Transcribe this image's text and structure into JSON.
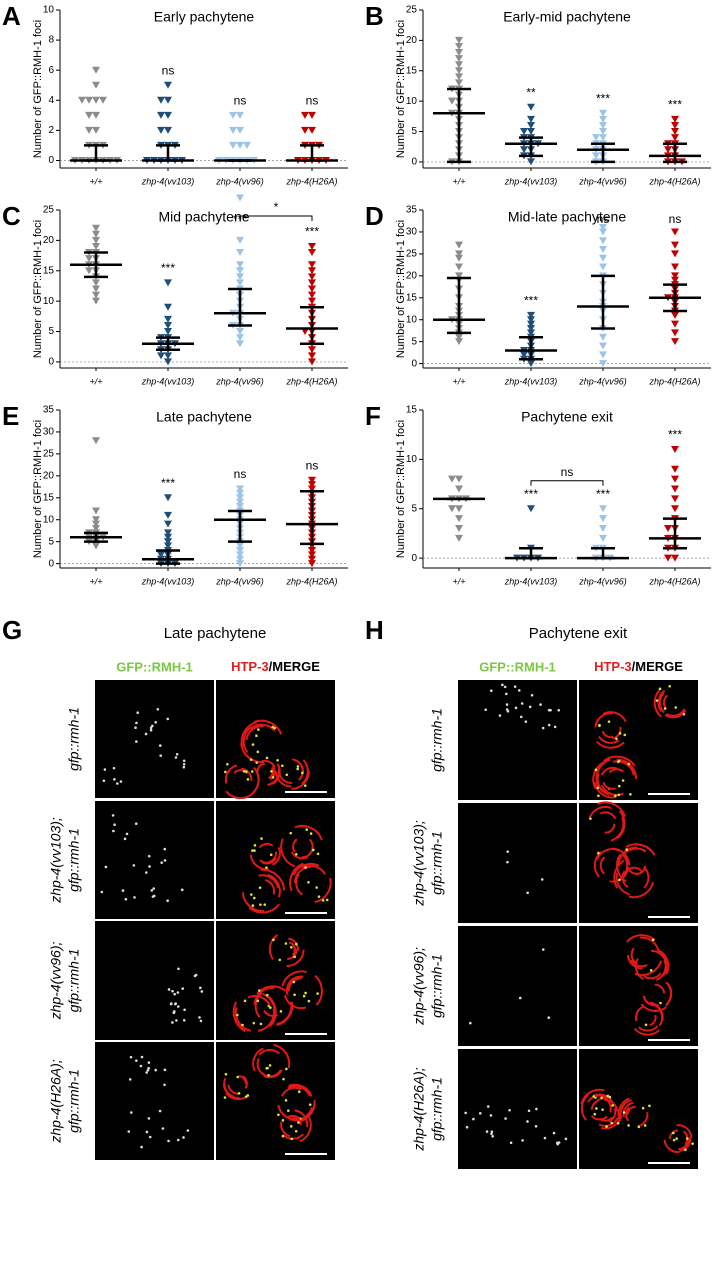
{
  "chart_data": [
    {
      "type": "dotplot",
      "panel": "A",
      "title": "Early pachytene",
      "ylabel": "Number of GFP::RMH-1 foci",
      "ylim": [
        -0.5,
        10
      ],
      "yticks": [
        0,
        2,
        4,
        6,
        8,
        10
      ],
      "groups": [
        {
          "name": "+/+",
          "color": "#8c8c8c",
          "points": [
            0,
            0,
            0,
            0,
            0,
            0,
            0,
            1,
            1,
            1,
            2,
            2,
            3,
            3,
            4,
            4,
            4,
            4,
            5,
            6
          ],
          "median": 0,
          "lower": 0,
          "upper": 1
        },
        {
          "name": "zhp-4(vv103)",
          "color": "#1f4e79",
          "points": [
            0,
            0,
            0,
            0,
            0,
            0,
            1,
            1,
            1,
            2,
            2,
            3,
            3,
            4,
            4,
            5
          ],
          "median": 0,
          "lower": 0,
          "upper": 1,
          "sig": "ns"
        },
        {
          "name": "zhp-4(vv96)",
          "color": "#9dc3e6",
          "points": [
            0,
            0,
            0,
            0,
            0,
            0,
            1,
            1,
            1,
            2,
            2,
            3,
            3
          ],
          "median": 0,
          "lower": 0,
          "upper": 0,
          "sig": "ns"
        },
        {
          "name": "zhp-4(H26A)",
          "color": "#c00000",
          "points": [
            0,
            0,
            0,
            0,
            0,
            1,
            1,
            1,
            2,
            2,
            3,
            3
          ],
          "median": 0,
          "lower": 0,
          "upper": 1,
          "sig": "ns"
        }
      ]
    },
    {
      "type": "dotplot",
      "panel": "B",
      "title": "Early-mid pachytene",
      "ylabel": "Number of GFP::RMH-1 foci",
      "ylim": [
        -1,
        25
      ],
      "yticks": [
        0,
        5,
        10,
        15,
        20,
        25
      ],
      "groups": [
        {
          "name": "+/+",
          "color": "#8c8c8c",
          "points": [
            0,
            0,
            1,
            2,
            3,
            4,
            5,
            6,
            7,
            8,
            8,
            9,
            10,
            10,
            11,
            12,
            12,
            13,
            14,
            15,
            16,
            17,
            18,
            19,
            20
          ],
          "median": 8,
          "lower": 0,
          "upper": 12
        },
        {
          "name": "zhp-4(vv103)",
          "color": "#1f4e79",
          "points": [
            0,
            1,
            1,
            2,
            2,
            3,
            3,
            3,
            4,
            4,
            5,
            5,
            6,
            7,
            9
          ],
          "median": 3,
          "lower": 1,
          "upper": 4,
          "sig": "**"
        },
        {
          "name": "zhp-4(vv96)",
          "color": "#9dc3e6",
          "points": [
            0,
            0,
            1,
            1,
            2,
            2,
            3,
            3,
            4,
            4,
            5,
            6,
            7,
            8
          ],
          "median": 2,
          "lower": 0,
          "upper": 3,
          "sig": "***"
        },
        {
          "name": "zhp-4(H26A)",
          "color": "#c00000",
          "points": [
            0,
            0,
            0,
            1,
            1,
            2,
            2,
            3,
            3,
            4,
            5,
            6,
            7
          ],
          "median": 1,
          "lower": 0,
          "upper": 3,
          "sig": "***"
        }
      ]
    },
    {
      "type": "dotplot",
      "panel": "C",
      "title": "Mid pachytene",
      "ylabel": "Number of GFP::RMH-1 foci",
      "ylim": [
        -1,
        25
      ],
      "yticks": [
        0,
        5,
        10,
        15,
        20,
        25
      ],
      "groups": [
        {
          "name": "+/+",
          "color": "#8c8c8c",
          "points": [
            10,
            11,
            12,
            13,
            14,
            15,
            15,
            16,
            16,
            17,
            17,
            18,
            18,
            19,
            20,
            21,
            22
          ],
          "median": 16,
          "lower": 14,
          "upper": 18
        },
        {
          "name": "zhp-4(vv103)",
          "color": "#1f4e79",
          "points": [
            0,
            1,
            1,
            2,
            2,
            3,
            3,
            3,
            4,
            4,
            5,
            6,
            7,
            9,
            13
          ],
          "median": 3,
          "lower": 2,
          "upper": 4,
          "sig": "***"
        },
        {
          "name": "zhp-4(vv96)",
          "color": "#9dc3e6",
          "points": [
            3,
            4,
            5,
            6,
            6,
            7,
            8,
            8,
            9,
            10,
            11,
            12,
            13,
            14,
            15,
            16,
            18,
            20,
            27
          ],
          "median": 8,
          "lower": 6,
          "upper": 12,
          "sig": "***"
        },
        {
          "name": "zhp-4(H26A)",
          "color": "#c00000",
          "points": [
            0,
            1,
            2,
            3,
            4,
            5,
            5,
            6,
            7,
            8,
            9,
            10,
            11,
            12,
            13,
            14,
            15,
            16,
            18,
            19
          ],
          "median": 5.5,
          "lower": 3,
          "upper": 9,
          "sig": "***"
        }
      ],
      "bracket": {
        "from": 2,
        "to": 3,
        "label": "*"
      }
    },
    {
      "type": "dotplot",
      "panel": "D",
      "title": "Mid-late pachytene",
      "ylabel": "Number of GFP::RMH-1 foci",
      "ylim": [
        -1,
        35
      ],
      "yticks": [
        0,
        5,
        10,
        15,
        20,
        25,
        30,
        35
      ],
      "groups": [
        {
          "name": "+/+",
          "color": "#8c8c8c",
          "points": [
            5,
            6,
            7,
            8,
            9,
            10,
            10,
            11,
            12,
            13,
            15,
            17,
            19,
            20,
            22,
            24,
            25,
            27
          ],
          "median": 10,
          "lower": 7,
          "upper": 19.5
        },
        {
          "name": "zhp-4(vv103)",
          "color": "#1f4e79",
          "points": [
            0,
            1,
            1,
            2,
            2,
            3,
            3,
            4,
            5,
            6,
            7,
            8,
            9,
            10,
            11
          ],
          "median": 3,
          "lower": 1,
          "upper": 6,
          "sig": "***"
        },
        {
          "name": "zhp-4(vv96)",
          "color": "#9dc3e6",
          "points": [
            0,
            2,
            4,
            6,
            8,
            10,
            12,
            13,
            14,
            16,
            18,
            20,
            22,
            24,
            26,
            28,
            30,
            31
          ],
          "median": 13,
          "lower": 8,
          "upper": 20,
          "sig": "ns"
        },
        {
          "name": "zhp-4(H26A)",
          "color": "#c00000",
          "points": [
            5,
            7,
            9,
            11,
            12,
            13,
            14,
            15,
            15,
            16,
            17,
            18,
            19,
            20,
            22,
            25,
            27,
            30
          ],
          "median": 15,
          "lower": 12,
          "upper": 18,
          "sig": "ns"
        }
      ]
    },
    {
      "type": "dotplot",
      "panel": "E",
      "title": "Late pachytene",
      "ylabel": "Number of GFP::RMH-1 foci",
      "ylim": [
        -1,
        35
      ],
      "yticks": [
        0,
        5,
        10,
        15,
        20,
        25,
        30,
        35
      ],
      "groups": [
        {
          "name": "+/+",
          "color": "#8c8c8c",
          "points": [
            4,
            5,
            5,
            6,
            6,
            6,
            7,
            7,
            8,
            9,
            10,
            12,
            28
          ],
          "median": 6,
          "lower": 5,
          "upper": 7
        },
        {
          "name": "zhp-4(vv103)",
          "color": "#1f4e79",
          "points": [
            0,
            0,
            0,
            1,
            1,
            2,
            2,
            3,
            4,
            5,
            6,
            7,
            9,
            11,
            15
          ],
          "median": 1,
          "lower": 0,
          "upper": 3,
          "sig": "***"
        },
        {
          "name": "zhp-4(vv96)",
          "color": "#9dc3e6",
          "points": [
            0,
            1,
            2,
            3,
            4,
            5,
            6,
            7,
            8,
            9,
            10,
            11,
            12,
            13,
            14,
            15,
            16,
            17
          ],
          "median": 10,
          "lower": 5,
          "upper": 12,
          "sig": "ns"
        },
        {
          "name": "zhp-4(H26A)",
          "color": "#c00000",
          "points": [
            0,
            1,
            2,
            3,
            4,
            5,
            6,
            7,
            8,
            9,
            10,
            11,
            12,
            13,
            14,
            15,
            16,
            17,
            18,
            19
          ],
          "median": 9,
          "lower": 4.5,
          "upper": 16.5,
          "sig": "ns"
        }
      ]
    },
    {
      "type": "dotplot",
      "panel": "F",
      "title": "Pachytene exit",
      "ylabel": "Number of GFP::RMH-1 foci",
      "ylim": [
        -1,
        15
      ],
      "yticks": [
        0,
        5,
        10,
        15
      ],
      "groups": [
        {
          "name": "+/+",
          "color": "#8c8c8c",
          "points": [
            2,
            3,
            4,
            5,
            5,
            6,
            6,
            6,
            7,
            8,
            8
          ],
          "median": 6,
          "lower": 6,
          "upper": 6
        },
        {
          "name": "zhp-4(vv103)",
          "color": "#1f4e79",
          "points": [
            0,
            0,
            0,
            0,
            1,
            5
          ],
          "median": 0,
          "lower": 0,
          "upper": 1,
          "sig": "***"
        },
        {
          "name": "zhp-4(vv96)",
          "color": "#9dc3e6",
          "points": [
            0,
            0,
            0,
            1,
            1,
            2,
            3,
            4,
            5
          ],
          "median": 0,
          "lower": 0,
          "upper": 1,
          "sig": "***"
        },
        {
          "name": "zhp-4(H26A)",
          "color": "#c00000",
          "points": [
            0,
            0,
            1,
            1,
            2,
            2,
            3,
            3,
            4,
            5,
            6,
            7,
            8,
            9,
            11
          ],
          "median": 2,
          "lower": 1,
          "upper": 4,
          "sig": "***"
        }
      ],
      "bracket": {
        "from": 1,
        "to": 2,
        "label": "ns"
      }
    }
  ],
  "microscopy": [
    {
      "panel": "G",
      "title": "Late pachytene",
      "channel_green": "GFP::RMH-1",
      "channel_red": "HTP-3",
      "channel_merge": "/MERGE",
      "rows": [
        [
          "gfp::rmh-1"
        ],
        [
          "zhp-4(vv103);",
          "gfp::rmh-1"
        ],
        [
          "zhp-4(vv96);",
          "gfp::rmh-1"
        ],
        [
          "zhp-4(H26A);",
          "gfp::rmh-1"
        ]
      ]
    },
    {
      "panel": "H",
      "title": "Pachytene exit",
      "channel_green": "GFP::RMH-1",
      "channel_red": "HTP-3",
      "channel_merge": "/MERGE",
      "rows": [
        [
          "gfp::rmh-1"
        ],
        [
          "zhp-4(vv103);",
          "gfp::rmh-1"
        ],
        [
          "zhp-4(vv96);",
          "gfp::rmh-1"
        ],
        [
          "zhp-4(H26A);",
          "gfp::rmh-1"
        ]
      ]
    }
  ]
}
